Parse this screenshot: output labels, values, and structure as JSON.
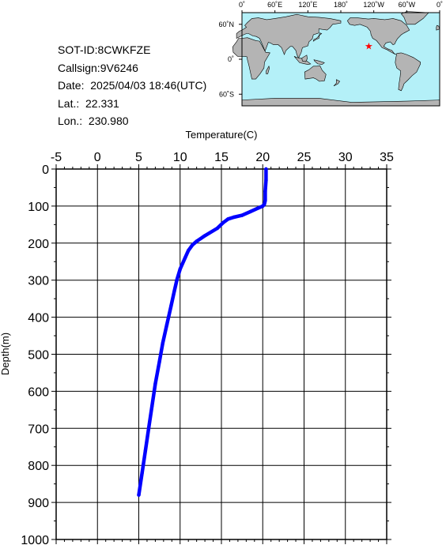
{
  "info": {
    "sot_id": "SOT-ID:8CWKFZE",
    "callsign": "Callsign:9V6246",
    "date": "Date:  2025/04/03 18:46(UTC)",
    "lat": "Lat.:  22.331",
    "lon": "Lon.:  230.980"
  },
  "map": {
    "top_labels": [
      "0˚",
      "60˚E",
      "120˚E",
      "180˚",
      "120˚W",
      "60˚W",
      "0˚"
    ],
    "left_labels": [
      "60˚N",
      "0˚",
      "60˚S"
    ],
    "marker": {
      "lat": 22.331,
      "lon": 230.98,
      "symbol": "★"
    },
    "ocean_color": "#b4f0f8",
    "land_color": "#b4b4b4",
    "marker_color": "#ff0000"
  },
  "chart_data": {
    "type": "line",
    "xlabel": "Temperature(C)",
    "ylabel": "Depth(m)",
    "xlim": [
      -5,
      35
    ],
    "ylim": [
      0,
      1000
    ],
    "x_ticks": [
      "-5",
      "0",
      "5",
      "10",
      "15",
      "20",
      "25",
      "30",
      "35"
    ],
    "y_ticks": [
      "0",
      "100",
      "200",
      "300",
      "400",
      "500",
      "600",
      "700",
      "800",
      "900",
      "1000"
    ],
    "grid": true,
    "series": [
      {
        "line_color": "#0000ff",
        "temperature": [
          20.4,
          20.4,
          20.3,
          20.3,
          20.2,
          20.0,
          19.5,
          18.5,
          17.5,
          16.5,
          15.8,
          15.2,
          14.5,
          13.0,
          12.0,
          11.5,
          11.0,
          10.6,
          10.0,
          9.6,
          9.3,
          8.9,
          8.4,
          7.9,
          7.5,
          7.0,
          6.6,
          6.2,
          5.8,
          5.4,
          5.0
        ],
        "depth": [
          0,
          30,
          60,
          85,
          95,
          100,
          105,
          115,
          125,
          130,
          135,
          145,
          160,
          180,
          195,
          205,
          220,
          240,
          270,
          300,
          330,
          370,
          420,
          470,
          520,
          580,
          640,
          700,
          760,
          820,
          880
        ]
      }
    ]
  }
}
